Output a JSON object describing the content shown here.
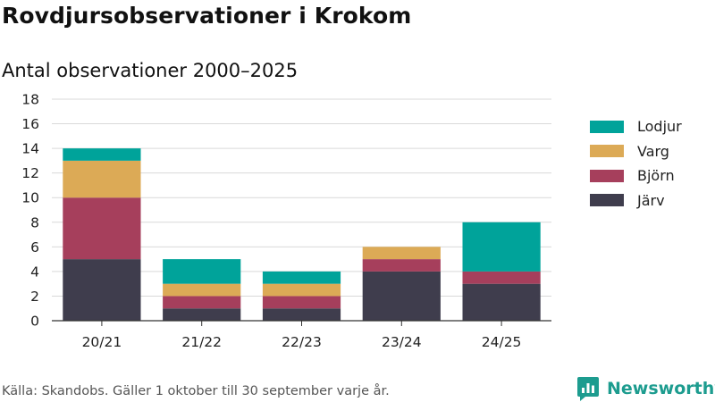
{
  "header": {
    "title": "Rovdjursobservationer i Krokom",
    "subtitle": "Antal observationer 2000–2025"
  },
  "footer": {
    "source": "Källa: Skandobs. Gäller 1 oktober till 30 september varje år.",
    "brand": "Newsworthy"
  },
  "colors": {
    "Järv": "#3f3d4d",
    "Björn": "#a63f5c",
    "Varg": "#dcaa56",
    "Lodjur": "#00a39a",
    "brand": "#1d9c8f"
  },
  "icons": {
    "brand_logo": "bar-chart-speech-icon"
  },
  "chart_data": {
    "type": "bar",
    "stacked": true,
    "title": "Rovdjursobservationer i Krokom",
    "subtitle": "Antal observationer 2000–2025",
    "xlabel": "",
    "ylabel": "",
    "ylim": [
      0,
      18
    ],
    "yticks": [
      0,
      2,
      4,
      6,
      8,
      10,
      12,
      14,
      16,
      18
    ],
    "grid": true,
    "legend_position": "right",
    "categories": [
      "20/21",
      "21/22",
      "22/23",
      "23/24",
      "24/25"
    ],
    "series": [
      {
        "name": "Järv",
        "values": [
          5,
          1,
          1,
          4,
          3
        ]
      },
      {
        "name": "Björn",
        "values": [
          5,
          1,
          1,
          1,
          1
        ]
      },
      {
        "name": "Varg",
        "values": [
          3,
          1,
          1,
          1,
          0
        ]
      },
      {
        "name": "Lodjur",
        "values": [
          1,
          2,
          1,
          0,
          4
        ]
      }
    ],
    "legend_order": [
      "Lodjur",
      "Varg",
      "Björn",
      "Järv"
    ]
  }
}
